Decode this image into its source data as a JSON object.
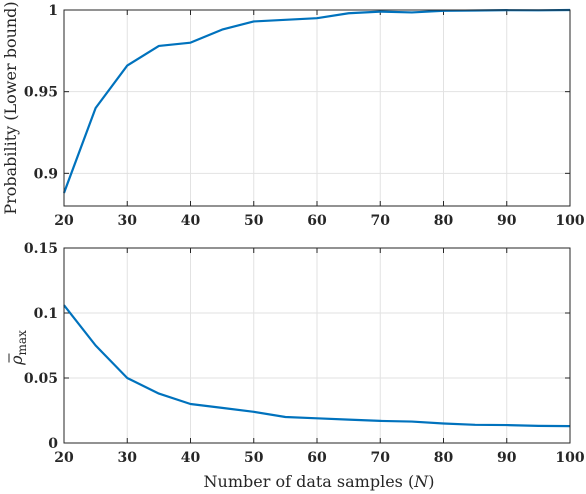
{
  "chart_data": [
    {
      "type": "line",
      "xlabel": "",
      "ylabel": "Probability (Lower bound)",
      "xlim": [
        20,
        100
      ],
      "ylim": [
        0.88,
        1
      ],
      "xticks": [
        20,
        30,
        40,
        50,
        60,
        70,
        80,
        90,
        100
      ],
      "yticks": [
        0.9,
        0.95,
        1
      ],
      "ytick_labels": [
        "0.9",
        "0.95",
        "1"
      ],
      "grid": true,
      "color": "#0072bd",
      "series": [
        {
          "x": [
            20,
            25,
            30,
            35,
            40,
            45,
            50,
            55,
            60,
            65,
            70,
            75,
            80,
            85,
            90,
            95,
            100
          ],
          "values": [
            0.888,
            0.94,
            0.966,
            0.978,
            0.98,
            0.988,
            0.993,
            0.994,
            0.995,
            0.998,
            0.999,
            0.9985,
            0.9995,
            0.9997,
            0.9999,
            0.9998,
            1.0
          ]
        }
      ]
    },
    {
      "type": "line",
      "xlabel": "Number of data samples (N)",
      "xlabel_parts": [
        "Number of data samples (",
        "N",
        ")"
      ],
      "ylabel": "ρ̄max",
      "ylabel_parts": [
        "ρ",
        "max"
      ],
      "xlim": [
        20,
        100
      ],
      "ylim": [
        0,
        0.15
      ],
      "xticks": [
        20,
        30,
        40,
        50,
        60,
        70,
        80,
        90,
        100
      ],
      "yticks": [
        0,
        0.05,
        0.1,
        0.15
      ],
      "ytick_labels": [
        "0",
        "0.05",
        "0.1",
        "0.15"
      ],
      "grid": true,
      "color": "#0072bd",
      "series": [
        {
          "x": [
            20,
            25,
            30,
            35,
            40,
            45,
            50,
            55,
            60,
            65,
            70,
            75,
            80,
            85,
            90,
            95,
            100
          ],
          "values": [
            0.106,
            0.075,
            0.05,
            0.038,
            0.03,
            0.027,
            0.024,
            0.02,
            0.019,
            0.018,
            0.017,
            0.0165,
            0.015,
            0.014,
            0.0138,
            0.0132,
            0.013
          ]
        }
      ]
    }
  ]
}
